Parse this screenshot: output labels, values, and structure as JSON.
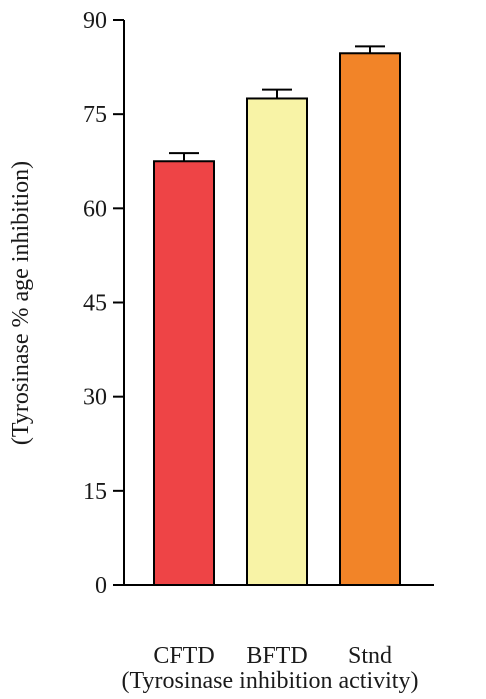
{
  "chart_data": {
    "type": "bar",
    "categories": [
      "CFTD",
      "BFTD",
      "Stnd"
    ],
    "values": [
      67.5,
      77.5,
      84.7
    ],
    "errors": [
      1.3,
      1.4,
      1.1
    ],
    "colors": [
      "#EE4446",
      "#F8F3A6",
      "#F28428"
    ],
    "xlabel": "(Tyrosinase inhibition activity)",
    "ylabel": "(Tyrosinase % age inhibition)",
    "ylim": [
      0,
      90
    ],
    "yticks": [
      0,
      15,
      30,
      45,
      60,
      75,
      90
    ],
    "grid": false
  }
}
